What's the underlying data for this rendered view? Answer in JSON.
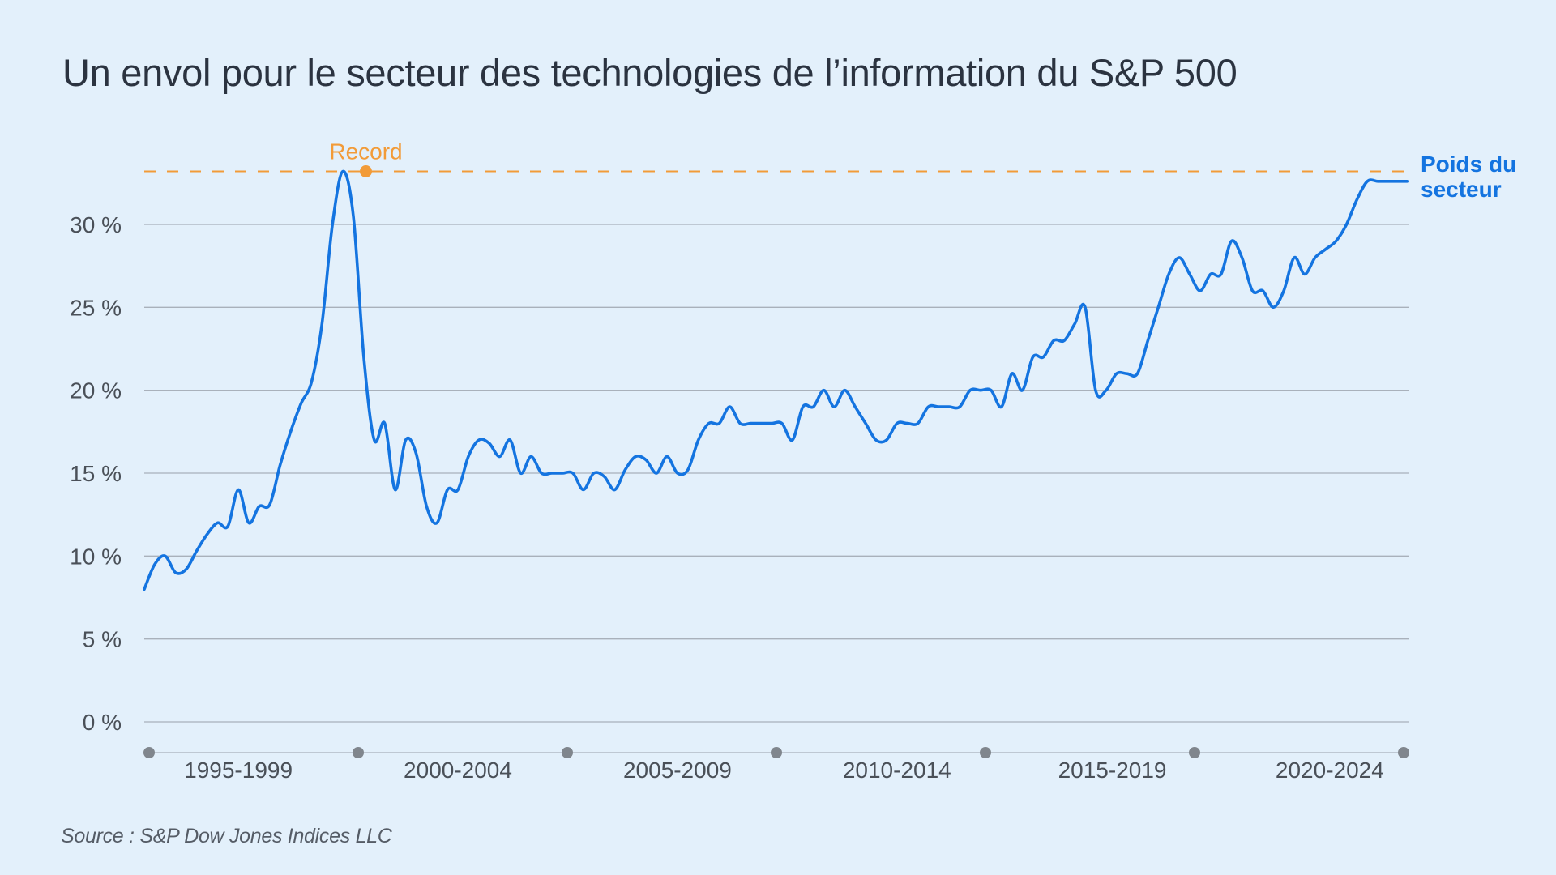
{
  "title": "Un envol pour le secteur des technologies de l’information du S&P 500",
  "source": "Source : S&P Dow Jones Indices LLC",
  "colors": {
    "background": "#e3f0fb",
    "series": "#1474e0",
    "record": "#f29b38",
    "grid": "#a9b1bb",
    "axis_dot": "#80868d"
  },
  "chart_data": {
    "type": "line",
    "title": "Un envol pour le secteur des technologies de l’information du S&P 500",
    "xlabel": "",
    "ylabel": "",
    "x_range": [
      0,
      30.25
    ],
    "ylim": [
      0,
      33
    ],
    "y_ticks": [
      0,
      5,
      10,
      15,
      20,
      25,
      30
    ],
    "y_tick_labels": [
      "0 %",
      "5 %",
      "10 %",
      "15 %",
      "20 %",
      "25 %",
      "30 %"
    ],
    "x_groups": [
      {
        "label": "1995-1999",
        "center": 2.25
      },
      {
        "label": "2000-2004",
        "center": 7.5
      },
      {
        "label": "2005-2009",
        "center": 12.75
      },
      {
        "label": "2010-2014",
        "center": 18.0
      },
      {
        "label": "2015-2019",
        "center": 23.15
      },
      {
        "label": "2020-2024",
        "center": 28.35
      }
    ],
    "x_separators": [
      0,
      5,
      10,
      15,
      20,
      25,
      30
    ],
    "record": {
      "label": "Record",
      "x": 5.3,
      "y": 33.2
    },
    "series": [
      {
        "name": "Poids du secteur",
        "label": "Poids du\nsecteur",
        "x": [
          0,
          0.25,
          0.5,
          0.75,
          1.0,
          1.25,
          1.5,
          1.75,
          2.0,
          2.25,
          2.5,
          2.75,
          3.0,
          3.25,
          3.5,
          3.75,
          4.0,
          4.25,
          4.5,
          4.75,
          5.0,
          5.25,
          5.5,
          5.75,
          6.0,
          6.25,
          6.5,
          6.75,
          7.0,
          7.25,
          7.5,
          7.75,
          8.0,
          8.25,
          8.5,
          8.75,
          9.0,
          9.25,
          9.5,
          9.75,
          10.0,
          10.25,
          10.5,
          10.75,
          11.0,
          11.25,
          11.5,
          11.75,
          12.0,
          12.25,
          12.5,
          12.75,
          13.0,
          13.25,
          13.5,
          13.75,
          14.0,
          14.25,
          14.5,
          14.75,
          15.0,
          15.25,
          15.5,
          15.75,
          16.0,
          16.25,
          16.5,
          16.75,
          17.0,
          17.25,
          17.5,
          17.75,
          18.0,
          18.25,
          18.5,
          18.75,
          19.0,
          19.25,
          19.5,
          19.75,
          20.0,
          20.25,
          20.5,
          20.75,
          21.0,
          21.25,
          21.5,
          21.75,
          22.0,
          22.25,
          22.5,
          22.75,
          23.0,
          23.25,
          23.5,
          23.75,
          24.0,
          24.25,
          24.5,
          24.75,
          25.0,
          25.25,
          25.5,
          25.75,
          26.0,
          26.25,
          26.5,
          26.75,
          27.0,
          27.25,
          27.5,
          27.75,
          28.0,
          28.25,
          28.5,
          28.75,
          29.0,
          29.25,
          29.5,
          29.75,
          30.0,
          30.2
        ],
        "values": [
          8.0,
          9.5,
          10.0,
          9.0,
          9.2,
          10.3,
          11.3,
          12.0,
          11.8,
          14.0,
          12.0,
          13.0,
          13.1,
          15.5,
          17.5,
          19.2,
          20.5,
          24.0,
          30.0,
          33.2,
          30.5,
          22.0,
          17.0,
          18.0,
          14.0,
          17.0,
          16.2,
          13.0,
          12.0,
          14.0,
          14.0,
          16.0,
          17.0,
          16.8,
          16.0,
          17.0,
          15.0,
          16.0,
          15.0,
          15.0,
          15.0,
          15.0,
          14.0,
          15.0,
          14.8,
          14.0,
          15.2,
          16.0,
          15.8,
          15.0,
          16.0,
          15.0,
          15.2,
          17.0,
          18.0,
          18.0,
          19.0,
          18.0,
          18.0,
          18.0,
          18.0,
          18.0,
          17.0,
          19.0,
          19.0,
          20.0,
          19.0,
          20.0,
          19.0,
          18.0,
          17.0,
          17.0,
          18.0,
          18.0,
          18.0,
          19.0,
          19.0,
          19.0,
          19.0,
          20.0,
          20.0,
          20.0,
          19.0,
          21.0,
          20.0,
          22.0,
          22.0,
          23.0,
          23.0,
          24.0,
          25.0,
          20.0,
          20.0,
          21.0,
          21.0,
          21.0,
          23.0,
          25.0,
          27.0,
          28.0,
          27.0,
          26.0,
          27.0,
          27.0,
          29.0,
          28.0,
          26.0,
          26.0,
          25.0,
          26.0,
          28.0,
          27.0,
          28.0,
          28.5,
          29.0,
          30.0,
          31.5,
          32.6,
          32.6,
          32.6,
          32.6,
          32.6
        ]
      }
    ]
  }
}
